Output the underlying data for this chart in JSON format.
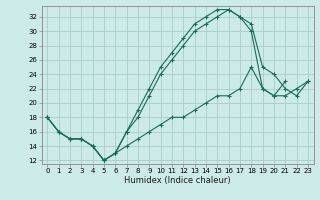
{
  "title": "",
  "xlabel": "Humidex (Indice chaleur)",
  "bg_color": "#cceae7",
  "grid_color": "#aacccc",
  "line_color": "#1a6b5a",
  "xlim": [
    -0.5,
    23.5
  ],
  "ylim": [
    11.5,
    33.5
  ],
  "xticks": [
    0,
    1,
    2,
    3,
    4,
    5,
    6,
    7,
    8,
    9,
    10,
    11,
    12,
    13,
    14,
    15,
    16,
    17,
    18,
    19,
    20,
    21,
    22,
    23
  ],
  "yticks": [
    12,
    14,
    16,
    18,
    20,
    22,
    24,
    26,
    28,
    30,
    32
  ],
  "line1_x": [
    0,
    1,
    2,
    3,
    4,
    5,
    6,
    7,
    8,
    9,
    10,
    11,
    12,
    13,
    14,
    15,
    16,
    17,
    18,
    19,
    20,
    21,
    22,
    23
  ],
  "line1_y": [
    18,
    16,
    15,
    15,
    14,
    12,
    13,
    16,
    19,
    22,
    25,
    27,
    29,
    31,
    32,
    33,
    33,
    32,
    30,
    22,
    21,
    23,
    null,
    null
  ],
  "line2_x": [
    0,
    1,
    2,
    3,
    4,
    5,
    6,
    7,
    8,
    9,
    10,
    11,
    12,
    13,
    14,
    15,
    16,
    17,
    18,
    19,
    20,
    21,
    22,
    23
  ],
  "line2_y": [
    18,
    16,
    15,
    15,
    14,
    12,
    13,
    16,
    18,
    21,
    24,
    26,
    28,
    30,
    31,
    32,
    33,
    32,
    31,
    25,
    24,
    22,
    21,
    23
  ],
  "line3_x": [
    0,
    1,
    2,
    3,
    4,
    5,
    6,
    7,
    8,
    9,
    10,
    11,
    12,
    13,
    14,
    15,
    16,
    17,
    18,
    19,
    20,
    21,
    22,
    23
  ],
  "line3_y": [
    18,
    16,
    15,
    15,
    14,
    12,
    13,
    14,
    15,
    16,
    17,
    18,
    18,
    19,
    20,
    21,
    21,
    22,
    25,
    22,
    21,
    21,
    22,
    23
  ]
}
